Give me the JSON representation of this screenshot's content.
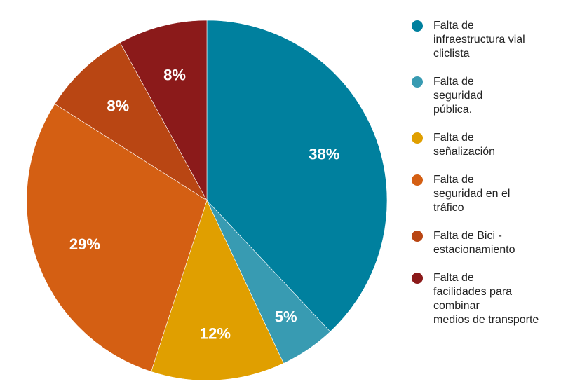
{
  "chart_data": {
    "type": "pie",
    "title": "",
    "legend_position": "right",
    "slices": [
      {
        "name": "Falta de\ninfraestructura vial\ncliclista",
        "value": 38,
        "label": "38%",
        "color": "#00809e"
      },
      {
        "name": "Falta de\nseguridad\npública.",
        "value": 5,
        "label": "5%",
        "color": "#389bb2"
      },
      {
        "name": "Falta de\nseñalización",
        "value": 12,
        "label": "12%",
        "color": "#e09f00"
      },
      {
        "name": "Falta de\nseguridad en el\ntráfico",
        "value": 29,
        "label": "29%",
        "color": "#d45f13"
      },
      {
        "name": "Falta de Bici -\nestacionamiento",
        "value": 8,
        "label": "8%",
        "color": "#b94613"
      },
      {
        "name": "Falta de\nfacilidades para\ncombinar\nmedios de transporte",
        "value": 8,
        "label": "8%",
        "color": "#8b1a1a"
      }
    ]
  }
}
